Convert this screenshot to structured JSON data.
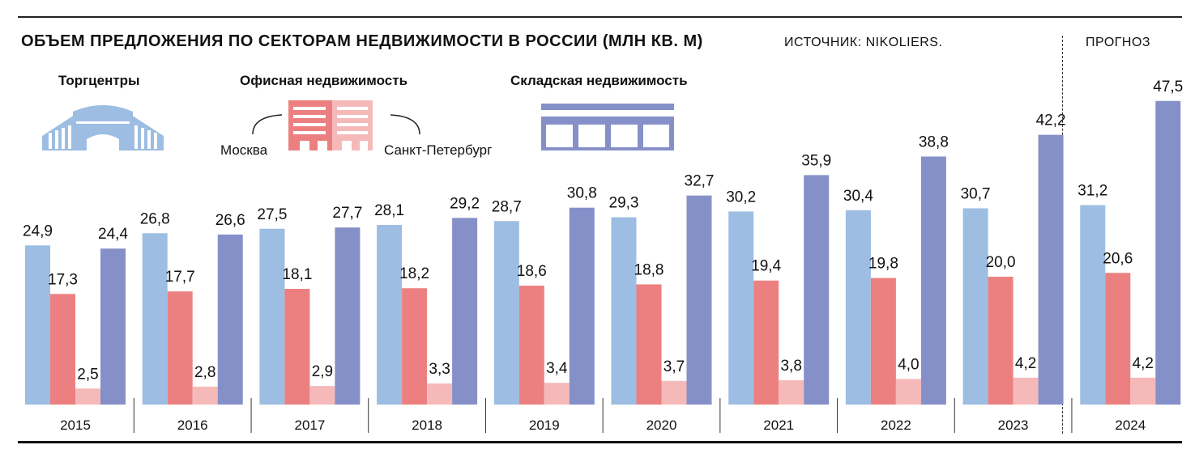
{
  "header": {
    "title": "ОБЪЕМ ПРЕДЛОЖЕНИЯ ПО СЕКТОРАМ НЕДВИЖИМОСТИ В РОССИИ (МЛН КВ. М)",
    "source": "ИСТОЧНИК: NIKOLIERS.",
    "forecast": "ПРОГНОЗ"
  },
  "legend": {
    "malls": "Торгцентры",
    "offices": "Офисная недвижимость",
    "moscow": "Москва",
    "spb": "Санкт-Петербург",
    "warehouses": "Складская недвижимость"
  },
  "colors": {
    "malls": "#9dbde2",
    "moscow": "#ec8080",
    "spb": "#f6b9b9",
    "warehouses": "#8690c8"
  },
  "chart_data": {
    "type": "bar",
    "categories": [
      "2015",
      "2016",
      "2017",
      "2018",
      "2019",
      "2020",
      "2021",
      "2022",
      "2023",
      "2024"
    ],
    "series": [
      {
        "name": "Торгцентры",
        "values": [
          24.9,
          26.8,
          27.5,
          28.1,
          28.7,
          29.3,
          30.2,
          30.4,
          30.7,
          31.2
        ],
        "labels": [
          "24,9",
          "26,8",
          "27,5",
          "28,1",
          "28,7",
          "29,3",
          "30,2",
          "30,4",
          "30,7",
          "31,2"
        ]
      },
      {
        "name": "Москва",
        "values": [
          17.3,
          17.7,
          18.1,
          18.2,
          18.6,
          18.8,
          19.4,
          19.8,
          20.0,
          20.6
        ],
        "labels": [
          "17,3",
          "17,7",
          "18,1",
          "18,2",
          "18,6",
          "18,8",
          "19,4",
          "19,8",
          "20,0",
          "20,6"
        ]
      },
      {
        "name": "Санкт-Петербург",
        "values": [
          2.5,
          2.8,
          2.9,
          3.3,
          3.4,
          3.7,
          3.8,
          4.0,
          4.2,
          4.2
        ],
        "labels": [
          "2,5",
          "2,8",
          "2,9",
          "3,3",
          "3,4",
          "3,7",
          "3,8",
          "4,0",
          "4,2",
          "4,2"
        ]
      },
      {
        "name": "Складская недвижимость",
        "values": [
          24.4,
          26.6,
          27.7,
          29.2,
          30.8,
          32.7,
          35.9,
          38.8,
          42.2,
          47.5
        ],
        "labels": [
          "24,4",
          "26,6",
          "27,7",
          "29,2",
          "30,8",
          "32,7",
          "35,9",
          "38,8",
          "42,2",
          "47,5"
        ]
      }
    ],
    "forecast_categories": [
      "2024"
    ],
    "ylim": [
      0,
      50
    ],
    "grid": false,
    "legend_position": "top"
  }
}
